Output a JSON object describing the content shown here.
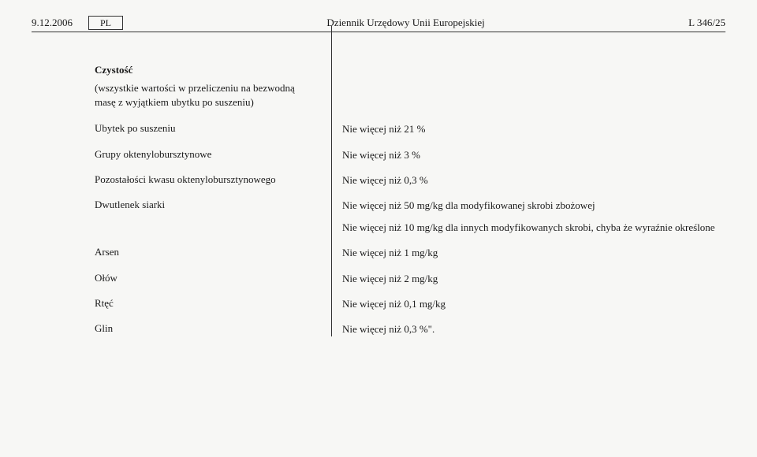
{
  "header": {
    "date": "9.12.2006",
    "lang": "PL",
    "journal": "Dziennik Urzędowy Unii Europejskiej",
    "page_ref": "L 346/25"
  },
  "section": {
    "title": "Czystość",
    "note": "(wszystkie wartości w przeliczeniu na bezwodną masę z wyjątkiem ubytku po suszeniu)"
  },
  "rows": [
    {
      "label": "Ubytek po suszeniu",
      "value": "Nie więcej niż 21 %"
    },
    {
      "label": "Grupy oktenylobursztynowe",
      "value": "Nie więcej niż 3 %"
    },
    {
      "label": "Pozostałości kwasu oktenylobursztynowego",
      "value": "Nie więcej niż 0,3 %"
    },
    {
      "label": "Dwutlenek siarki",
      "value": "Nie więcej niż 50 mg/kg dla modyfikowanej skrobi zbożowej",
      "value2": "Nie więcej niż 10 mg/kg dla innych modyfikowanych skrobi, chyba że wyraźnie określone"
    },
    {
      "label": "Arsen",
      "value": "Nie więcej niż 1 mg/kg"
    },
    {
      "label": "Ołów",
      "value": "Nie więcej niż 2 mg/kg"
    },
    {
      "label": "Rtęć",
      "value": "Nie więcej niż 0,1 mg/kg"
    },
    {
      "label": "Glin",
      "value": "Nie więcej niż 0,3 %\"."
    }
  ],
  "style": {
    "background": "#f7f7f5",
    "text_color": "#1a1a1a",
    "divider_color": "#333333",
    "font_family": "Georgia, Times New Roman, serif",
    "base_fontsize": 13
  }
}
